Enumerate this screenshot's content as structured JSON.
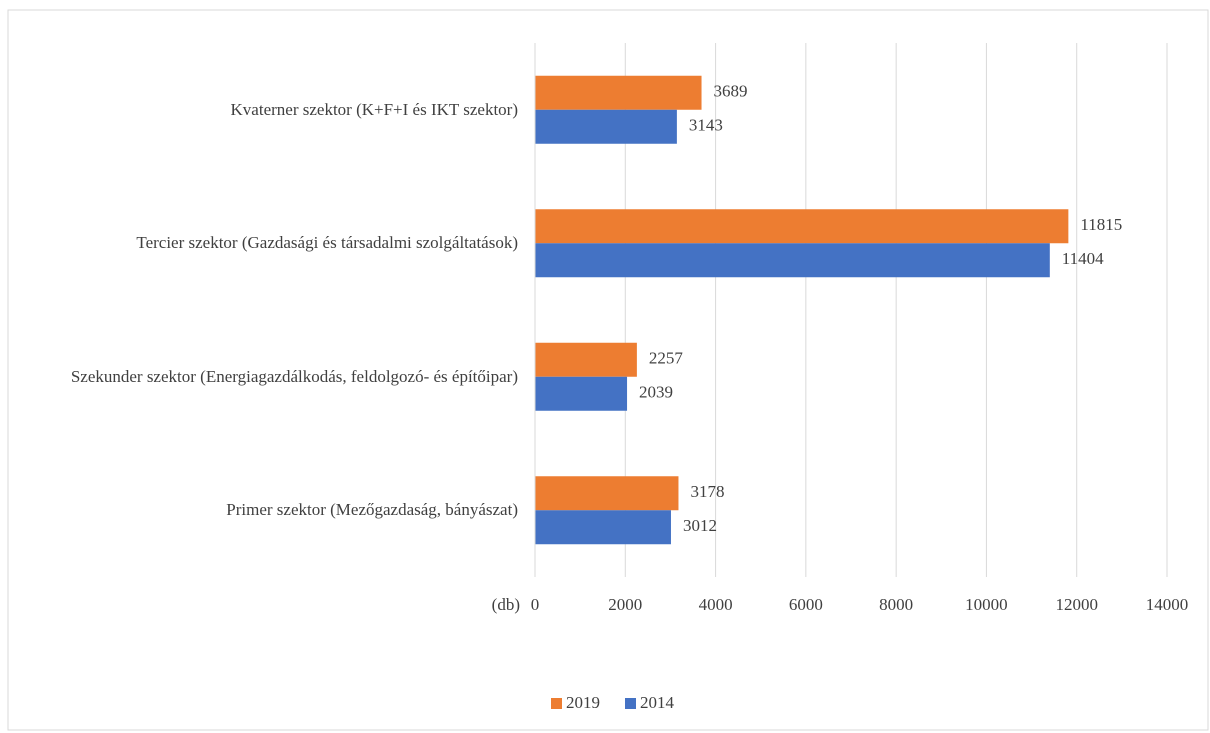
{
  "chart_data": {
    "type": "barh",
    "categories": [
      "Kvaterner szektor (K+F+I és IKT szektor)",
      "Tercier szektor (Gazdasági és társadalmi szolgáltatások)",
      "Szekunder szektor (Energiagazdálkodás, feldolgozó- és építőipar)",
      "Primer szektor (Mezőgazdaság, bányászat)"
    ],
    "series": [
      {
        "name": "2019",
        "color": "#ed7d31",
        "values": [
          3689,
          11815,
          2257,
          3178
        ]
      },
      {
        "name": "2014",
        "color": "#4472c4",
        "values": [
          3143,
          11404,
          2039,
          3012
        ]
      }
    ],
    "x_label": "(db)",
    "xlim": [
      0,
      14000
    ],
    "xticks": [
      0,
      2000,
      4000,
      6000,
      8000,
      10000,
      12000,
      14000
    ],
    "grid": true,
    "legend": "bottom"
  }
}
